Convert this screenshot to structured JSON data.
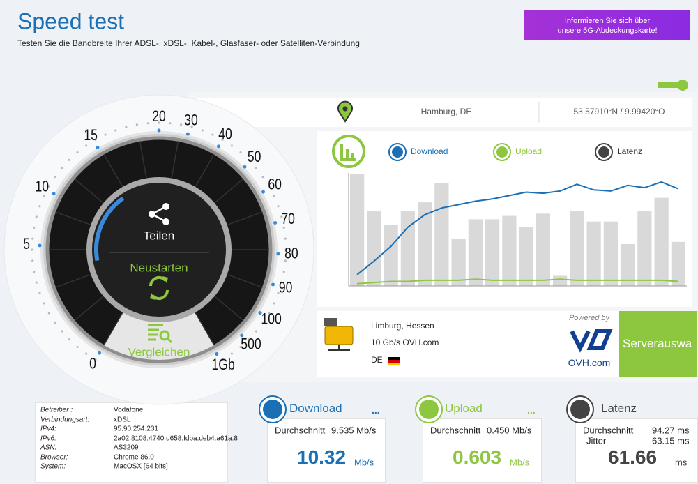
{
  "header": {
    "title": "Speed test",
    "subtitle": "Testen Sie die Bandbreite Ihrer ADSL-, xDSL-, Kabel-, Glasfaser- oder Satelliten-Verbindung",
    "promo": [
      "Informieren Sie sich über",
      "unsere 5G-Abdeckungskarte!"
    ]
  },
  "gauge": {
    "scale": [
      0,
      5,
      10,
      15,
      20,
      30,
      40,
      50,
      60,
      70,
      80,
      90,
      100,
      500,
      "1Gb"
    ],
    "share": "Teilen",
    "restart": "Neustarten",
    "compare": "Vergleichen"
  },
  "location": {
    "city": "Hamburg, DE",
    "coordinates": "53.57910°N / 9.99420°O"
  },
  "graph": {
    "legend": {
      "download": "Download",
      "upload": "Upload",
      "latency": "Latenz"
    },
    "ylim": [
      0,
      100
    ],
    "bars": [
      99,
      66,
      54,
      66,
      74,
      91,
      42,
      59,
      59,
      62,
      52,
      64,
      9,
      66,
      57,
      57,
      37,
      66,
      78,
      39
    ],
    "download": [
      10,
      22,
      35,
      52,
      63,
      69,
      72,
      75,
      77,
      80,
      83,
      82,
      84,
      90,
      85,
      84,
      89,
      87,
      92,
      86
    ],
    "upload": [
      2,
      3,
      4,
      4,
      5,
      5,
      5,
      6,
      5,
      5,
      5,
      5,
      6,
      5,
      5,
      5,
      5,
      5,
      5,
      4
    ]
  },
  "server": {
    "city": "Limburg, Hessen",
    "host": "10 Gb/s OVH.com",
    "country": "DE",
    "powered_by": "Powered by",
    "provider": "OVH.com",
    "select": "Serverauswa"
  },
  "connection": {
    "rows": [
      [
        "Betreiber :",
        "Vodafone"
      ],
      [
        "Verbindungsart:",
        "xDSL"
      ],
      [
        "IPv4:",
        "95.90.254.231"
      ],
      [
        "IPv6:",
        "2a02:8108:4740:d658:fdba:deb4:a61a:8"
      ],
      [
        "ASN:",
        "AS3209"
      ],
      [
        "Browser:",
        "Chrome 86.0"
      ],
      [
        "System:",
        "MacOSX [64 bits]"
      ]
    ]
  },
  "results": {
    "download": {
      "title": "Download",
      "more": "...",
      "average_label": "Durchschnitt",
      "average": "9.535 Mb/s",
      "value": "10.32",
      "unit": "Mb/s"
    },
    "upload": {
      "title": "Upload",
      "more": "...",
      "average_label": "Durchschnitt",
      "average": "0.450 Mb/s",
      "value": "0.603",
      "unit": "Mb/s"
    },
    "latency": {
      "title": "Latenz",
      "average_label": "Durchschnitt",
      "average": "94.27 ms",
      "jitter_label": "Jitter",
      "jitter": "63.15 ms",
      "value": "61.66",
      "unit": "ms"
    }
  }
}
